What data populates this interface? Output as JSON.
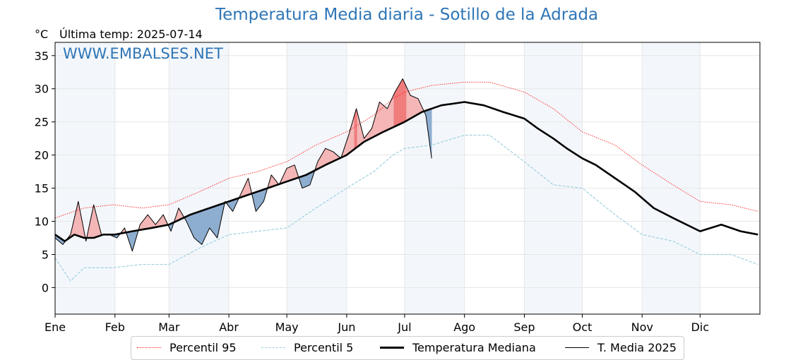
{
  "title": "Temperatura Media diaria - Sotillo de la Adrada",
  "unit_label": "°C",
  "last_temp_label": "Última temp: 2025-07-14",
  "watermark": "WWW.EMBALSES.NET",
  "colors": {
    "p95": "#ff2020",
    "p5": "#9fd0e0",
    "median": "#000000",
    "current": "#000000",
    "fill_warm": "#f4b6b6",
    "fill_warm_strong": "#f07c7c",
    "fill_cold": "#8eaed0",
    "band": "#f3f7fb",
    "grid": "#e6e6e6"
  },
  "chart_data": {
    "type": "line",
    "title": "Temperatura Media diaria - Sotillo de la Adrada",
    "ylabel": "°C",
    "ylim": [
      -4,
      37
    ],
    "yticks": [
      "0",
      "5",
      "10",
      "15",
      "20",
      "25",
      "30",
      "35"
    ],
    "x_months": [
      "Ene",
      "Feb",
      "Mar",
      "Abr",
      "May",
      "Jun",
      "Jul",
      "Ago",
      "Sep",
      "Oct",
      "Nov",
      "Dic"
    ],
    "x_days": [
      0,
      31,
      59,
      90,
      120,
      151,
      181,
      212,
      243,
      273,
      304,
      334,
      365
    ],
    "grid": true,
    "legend_position": "bottom",
    "series": [
      {
        "name": "Percentil 95",
        "style": "dotted",
        "x": [
          0,
          15,
          30,
          45,
          59,
          75,
          90,
          105,
          120,
          135,
          151,
          165,
          175,
          181,
          195,
          212,
          225,
          243,
          258,
          273,
          290,
          304,
          320,
          334,
          350,
          364
        ],
        "values": [
          10.5,
          12.0,
          12.5,
          12.0,
          12.5,
          14.5,
          16.5,
          17.5,
          19.0,
          21.5,
          23.5,
          26.0,
          28.5,
          29.5,
          30.5,
          31.0,
          31.0,
          29.5,
          27.0,
          23.5,
          21.5,
          18.5,
          15.5,
          13.0,
          12.5,
          11.5
        ]
      },
      {
        "name": "Percentil 5",
        "style": "dashed",
        "x": [
          0,
          8,
          15,
          30,
          45,
          59,
          75,
          90,
          105,
          120,
          135,
          151,
          165,
          175,
          181,
          195,
          212,
          225,
          243,
          258,
          273,
          290,
          304,
          320,
          334,
          350,
          364
        ],
        "values": [
          4.5,
          1.0,
          3.0,
          3.0,
          3.5,
          3.5,
          6.0,
          8.0,
          8.5,
          9.0,
          12.0,
          15.0,
          17.5,
          20.0,
          21.0,
          21.5,
          23.0,
          23.0,
          19.0,
          15.5,
          15.0,
          11.0,
          8.0,
          7.0,
          5.0,
          5.0,
          3.5
        ]
      },
      {
        "name": "Temperatura Mediana",
        "style": "solid-thick",
        "x": [
          0,
          5,
          10,
          15,
          20,
          25,
          31,
          40,
          50,
          59,
          70,
          80,
          90,
          100,
          110,
          120,
          130,
          140,
          151,
          160,
          170,
          181,
          190,
          200,
          212,
          222,
          232,
          243,
          250,
          258,
          265,
          273,
          280,
          290,
          300,
          310,
          320,
          334,
          345,
          355,
          364
        ],
        "values": [
          8.0,
          7.0,
          8.0,
          7.5,
          7.5,
          8.0,
          8.0,
          8.5,
          9.0,
          9.5,
          11.0,
          12.0,
          13.0,
          14.0,
          15.0,
          16.0,
          17.0,
          18.5,
          20.0,
          22.0,
          23.5,
          25.0,
          26.5,
          27.5,
          28.0,
          27.5,
          26.5,
          25.5,
          24.0,
          22.5,
          21.0,
          19.5,
          18.5,
          16.5,
          14.5,
          12.0,
          10.5,
          8.5,
          9.5,
          8.5,
          8.0
        ]
      },
      {
        "name": "T. Media 2025",
        "style": "solid-thin",
        "x": [
          0,
          4,
          8,
          12,
          16,
          20,
          24,
          28,
          32,
          36,
          40,
          44,
          48,
          52,
          56,
          60,
          64,
          68,
          72,
          76,
          80,
          84,
          88,
          92,
          96,
          100,
          104,
          108,
          112,
          116,
          120,
          124,
          128,
          132,
          136,
          140,
          144,
          148,
          152,
          156,
          160,
          164,
          168,
          172,
          176,
          180,
          184,
          188,
          192,
          195
        ],
        "values": [
          7.5,
          6.5,
          8.0,
          13.0,
          7.0,
          12.5,
          8.0,
          8.0,
          7.5,
          9.0,
          5.5,
          9.5,
          11.0,
          9.5,
          11.0,
          8.5,
          12.0,
          10.0,
          7.5,
          6.5,
          9.0,
          7.5,
          13.0,
          11.5,
          14.0,
          16.5,
          11.5,
          13.0,
          17.0,
          15.5,
          18.0,
          18.5,
          15.0,
          15.5,
          19.0,
          21.0,
          20.5,
          19.5,
          23.0,
          27.0,
          22.5,
          24.0,
          28.0,
          27.0,
          29.5,
          31.5,
          29.0,
          28.5,
          26.0,
          19.5
        ]
      }
    ]
  },
  "legend": [
    {
      "label": "Percentil 95",
      "style": "dotted",
      "color_key": "p95"
    },
    {
      "label": "Percentil 5",
      "style": "dashed",
      "color_key": "p5"
    },
    {
      "label": "Temperatura Mediana",
      "style": "thick",
      "color_key": "median"
    },
    {
      "label": "T. Media 2025",
      "style": "thin",
      "color_key": "current"
    }
  ]
}
